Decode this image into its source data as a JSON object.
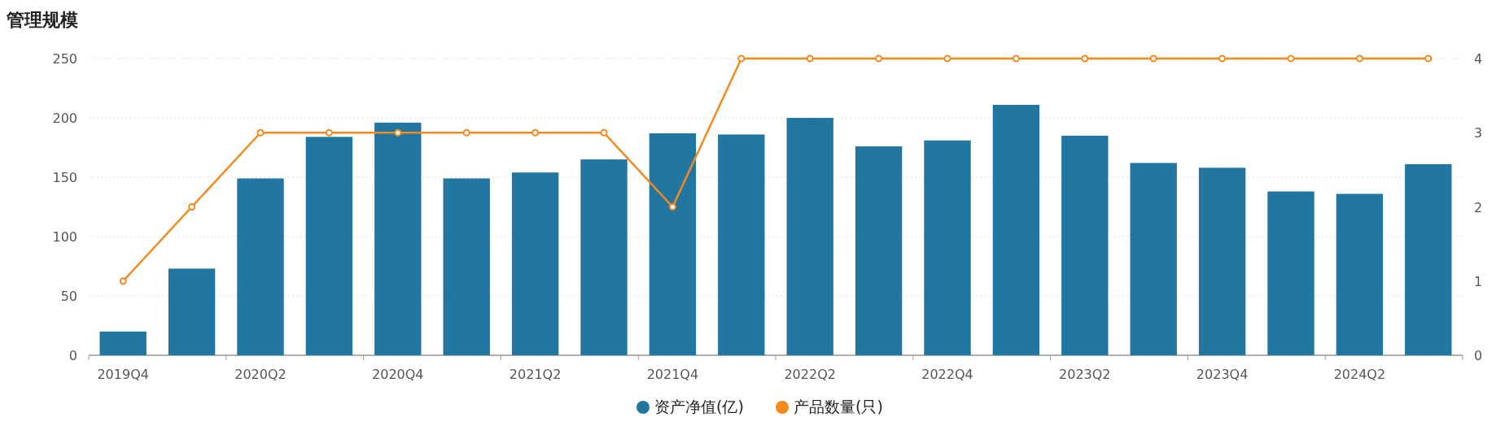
{
  "chart_data": {
    "type": "bar",
    "title": "管理规模",
    "categories": [
      "2019Q4",
      null,
      "2020Q2",
      null,
      "2020Q4",
      null,
      "2021Q2",
      null,
      "2021Q4",
      null,
      "2022Q2",
      null,
      "2022Q4",
      null,
      "2023Q2",
      null,
      "2023Q4",
      null,
      "2024Q2",
      null
    ],
    "series": [
      {
        "name": "资产净值(亿)",
        "color": "#2277a0",
        "values": [
          20,
          73,
          149,
          184,
          196,
          149,
          154,
          165,
          187,
          186,
          200,
          176,
          181,
          211,
          185,
          162,
          158,
          138,
          136,
          161
        ]
      },
      {
        "name": "产品数量(只)",
        "type": "line",
        "axis": "y2",
        "color": "#f5891e",
        "values": [
          1,
          2,
          3,
          3,
          3,
          3,
          3,
          3,
          2,
          4,
          4,
          4,
          4,
          4,
          4,
          4,
          4,
          4,
          4,
          4
        ]
      }
    ],
    "ylim": [
      0,
      250
    ],
    "yticks": [
      0,
      50,
      100,
      150,
      200,
      250
    ],
    "y2lim": [
      0,
      4
    ],
    "y2ticks": [
      0,
      1,
      2,
      3,
      4
    ],
    "grid": "y",
    "legend": "bottom",
    "marker": "circle"
  }
}
